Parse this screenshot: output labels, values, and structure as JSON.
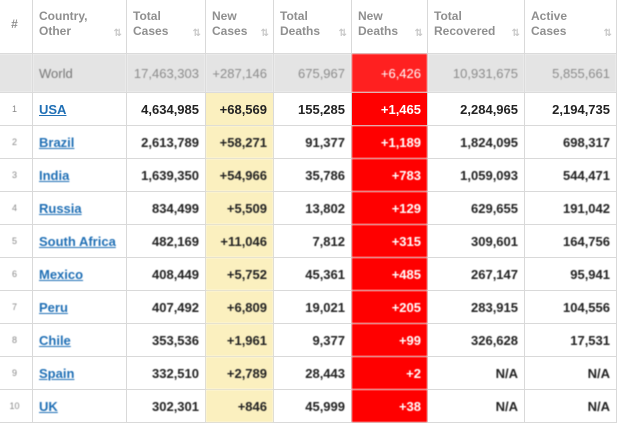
{
  "headers": [
    {
      "label": "#"
    },
    {
      "label": "Country,\nOther"
    },
    {
      "label": "Total\nCases"
    },
    {
      "label": "New\nCases"
    },
    {
      "label": "Total\nDeaths"
    },
    {
      "label": "New\nDeaths"
    },
    {
      "label": "Total\nRecovered"
    },
    {
      "label": "Active\nCases"
    }
  ],
  "world": {
    "name": "World",
    "total_cases": "17,463,303",
    "new_cases": "+287,146",
    "total_deaths": "675,967",
    "new_deaths": "+6,426",
    "total_recovered": "10,931,675",
    "active_cases": "5,855,661"
  },
  "rows": [
    {
      "num": "1",
      "country": "USA",
      "total_cases": "4,634,985",
      "new_cases": "+68,569",
      "total_deaths": "155,285",
      "new_deaths": "+1,465",
      "total_recovered": "2,284,965",
      "active_cases": "2,194,735"
    },
    {
      "num": "2",
      "country": "Brazil",
      "total_cases": "2,613,789",
      "new_cases": "+58,271",
      "total_deaths": "91,377",
      "new_deaths": "+1,189",
      "total_recovered": "1,824,095",
      "active_cases": "698,317"
    },
    {
      "num": "3",
      "country": "India",
      "total_cases": "1,639,350",
      "new_cases": "+54,966",
      "total_deaths": "35,786",
      "new_deaths": "+783",
      "total_recovered": "1,059,093",
      "active_cases": "544,471"
    },
    {
      "num": "4",
      "country": "Russia",
      "total_cases": "834,499",
      "new_cases": "+5,509",
      "total_deaths": "13,802",
      "new_deaths": "+129",
      "total_recovered": "629,655",
      "active_cases": "191,042"
    },
    {
      "num": "5",
      "country": "South Africa",
      "total_cases": "482,169",
      "new_cases": "+11,046",
      "total_deaths": "7,812",
      "new_deaths": "+315",
      "total_recovered": "309,601",
      "active_cases": "164,756"
    },
    {
      "num": "6",
      "country": "Mexico",
      "total_cases": "408,449",
      "new_cases": "+5,752",
      "total_deaths": "45,361",
      "new_deaths": "+485",
      "total_recovered": "267,147",
      "active_cases": "95,941"
    },
    {
      "num": "7",
      "country": "Peru",
      "total_cases": "407,492",
      "new_cases": "+6,809",
      "total_deaths": "19,021",
      "new_deaths": "+205",
      "total_recovered": "283,915",
      "active_cases": "104,556"
    },
    {
      "num": "8",
      "country": "Chile",
      "total_cases": "353,536",
      "new_cases": "+1,961",
      "total_deaths": "9,377",
      "new_deaths": "+99",
      "total_recovered": "326,628",
      "active_cases": "17,531"
    },
    {
      "num": "9",
      "country": "Spain",
      "total_cases": "332,510",
      "new_cases": "+2,789",
      "total_deaths": "28,443",
      "new_deaths": "+2",
      "total_recovered": "N/A",
      "active_cases": "N/A"
    },
    {
      "num": "10",
      "country": "UK",
      "total_cases": "302,301",
      "new_cases": "+846",
      "total_deaths": "45,999",
      "new_deaths": "+38",
      "total_recovered": "N/A",
      "active_cases": "N/A"
    }
  ],
  "colors": {
    "new_cases_bg": "#fbf0bf",
    "new_deaths_bg": "#ff0000",
    "world_row_bg": "#e4e4e4",
    "link": "#1f6fb5"
  }
}
